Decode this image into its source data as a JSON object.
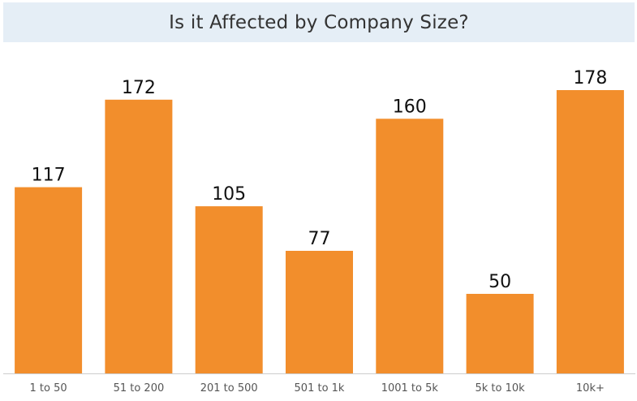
{
  "title": "Is it Affected by Company Size?",
  "colors": {
    "bar": "#f28e2c",
    "title_background": "#e5eef6",
    "baseline": "#cccccc"
  },
  "chart_data": {
    "type": "bar",
    "title": "Is it Affected by Company Size?",
    "xlabel": "",
    "ylabel": "",
    "categories": [
      "1 to 50",
      "51 to 200",
      "201 to 500",
      "501 to 1k",
      "1001 to 5k",
      "5k to 10k",
      "10k+"
    ],
    "values": [
      117,
      172,
      105,
      77,
      160,
      50,
      178
    ],
    "data_labels": [
      "117",
      "172",
      "105",
      "77",
      "160",
      "50",
      "178"
    ],
    "ylim": [
      0,
      178
    ],
    "grid": false,
    "legend": "none",
    "y_axis_visible": false
  }
}
